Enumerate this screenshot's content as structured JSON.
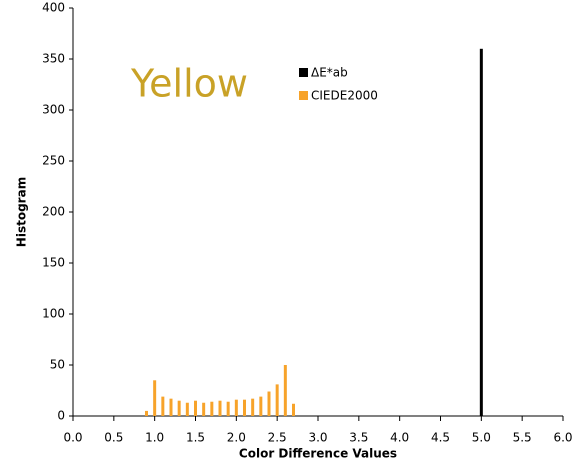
{
  "chart_data": {
    "type": "bar",
    "annotation": "Yellow",
    "xlabel": "Color Difference Values",
    "ylabel": "Histogram",
    "xlim": [
      0,
      6.0
    ],
    "ylim": [
      0,
      400
    ],
    "xticks": [
      {
        "value": 0,
        "label": "0.0"
      },
      0.5,
      {
        "value": 1,
        "label": "1.0"
      },
      1.5,
      {
        "value": 2,
        "label": "2.0"
      },
      2.5,
      {
        "value": 3,
        "label": "3.0"
      },
      3.5,
      {
        "value": 4,
        "label": "4.0"
      },
      4.5,
      {
        "value": 5,
        "label": "5.0"
      },
      5.5,
      {
        "value": 6,
        "label": "6.0"
      }
    ],
    "yticks": [
      0,
      50,
      100,
      150,
      200,
      250,
      300,
      350,
      400
    ],
    "grid": false,
    "series": [
      {
        "name": "ΔE*ab",
        "color": "#000000",
        "x": [
          5.0
        ],
        "values": [
          360
        ]
      },
      {
        "name": "CIEDE2000",
        "color": "#f7a32a",
        "x": [
          0.9,
          1.0,
          1.1,
          1.2,
          1.3,
          1.4,
          1.5,
          1.6,
          1.7,
          1.8,
          1.9,
          2.0,
          2.1,
          2.2,
          2.3,
          2.4,
          2.5,
          2.6,
          2.7
        ],
        "values": [
          5,
          35,
          19,
          17,
          15,
          13,
          15,
          13,
          14,
          15,
          14,
          16,
          16,
          17,
          19,
          24,
          31,
          50,
          12
        ]
      }
    ]
  }
}
